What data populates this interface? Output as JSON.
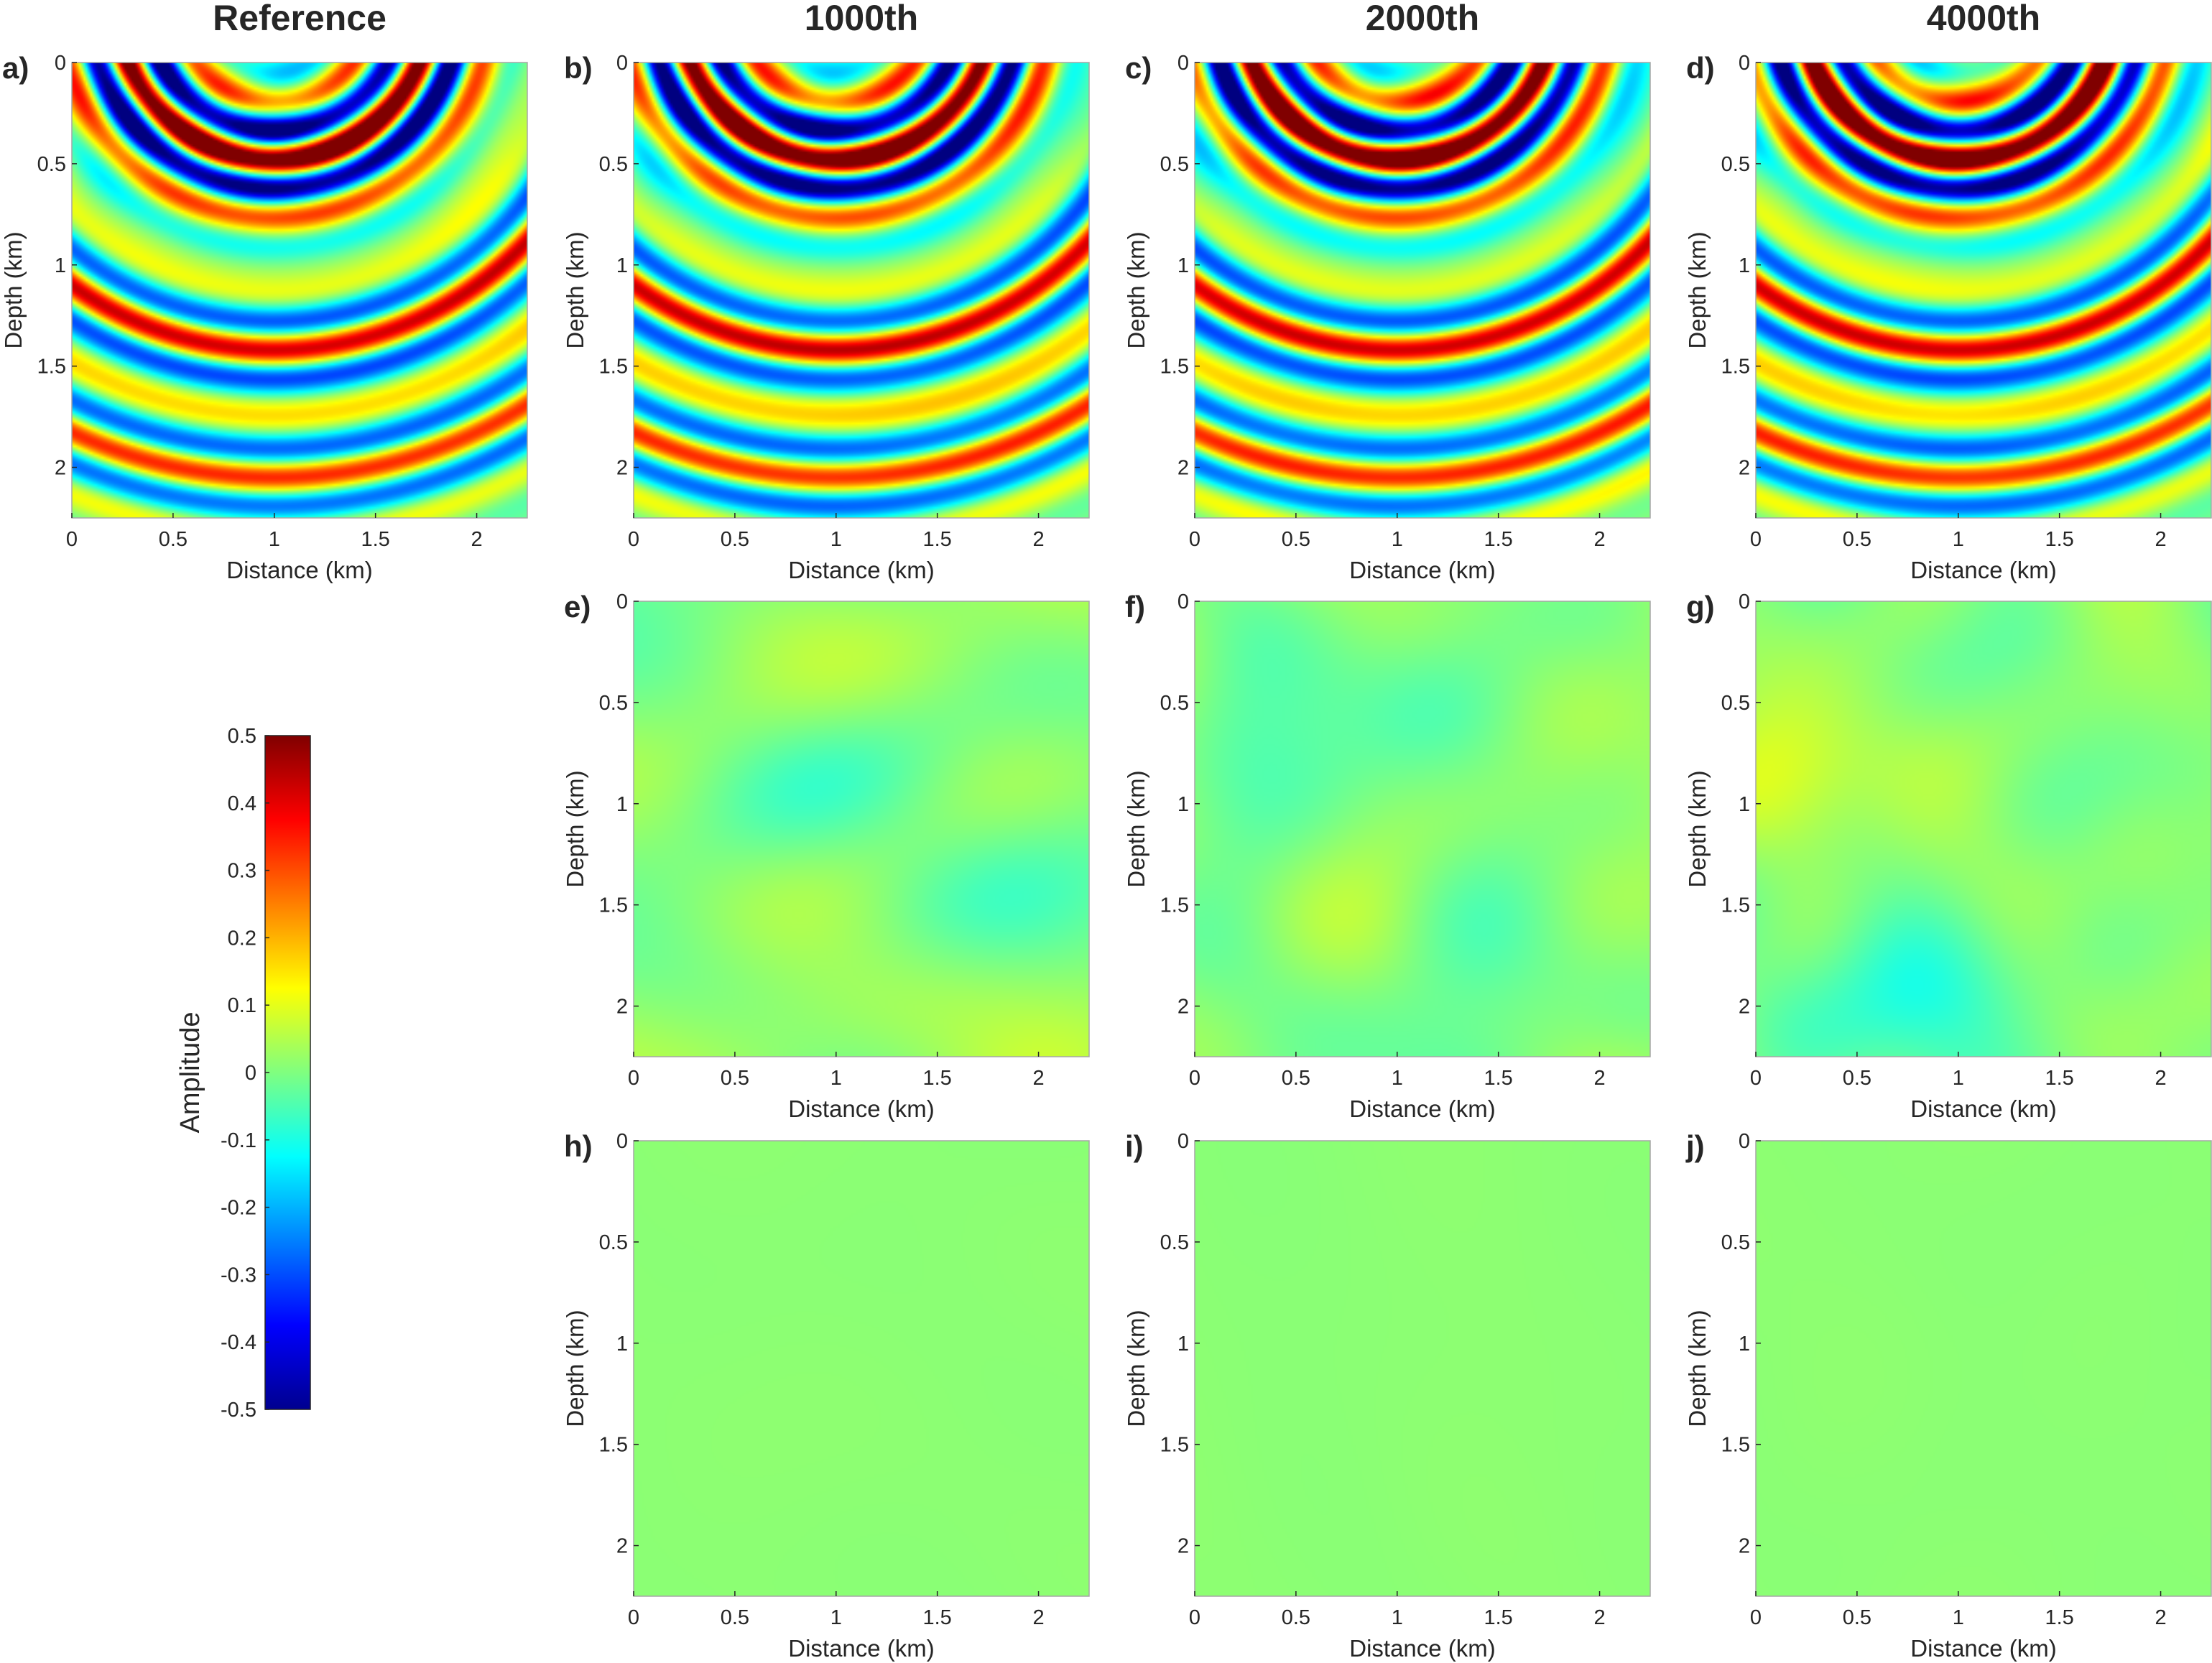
{
  "chart_data": {
    "type": "heatmap",
    "colormap": "jet",
    "columns": [
      "Reference",
      "1000th",
      "2000th",
      "4000th"
    ],
    "panels": [
      {
        "letter": "a)",
        "column": "Reference",
        "row": 1,
        "x": [
          0,
          2.25
        ],
        "y": [
          0,
          2.25
        ],
        "content": "wavefield",
        "amplitude_range": [
          -0.5,
          0.5
        ]
      },
      {
        "letter": "b)",
        "column": "1000th",
        "row": 1,
        "x": [
          0,
          2.25
        ],
        "y": [
          0,
          2.25
        ],
        "content": "wavefield",
        "amplitude_range": [
          -0.5,
          0.5
        ]
      },
      {
        "letter": "c)",
        "column": "2000th",
        "row": 1,
        "x": [
          0,
          2.25
        ],
        "y": [
          0,
          2.25
        ],
        "content": "wavefield",
        "amplitude_range": [
          -0.5,
          0.5
        ]
      },
      {
        "letter": "d)",
        "column": "4000th",
        "row": 1,
        "x": [
          0,
          2.25
        ],
        "y": [
          0,
          2.25
        ],
        "content": "wavefield",
        "amplitude_range": [
          -0.5,
          0.5
        ]
      },
      {
        "letter": "e)",
        "column": "1000th",
        "row": 2,
        "x": [
          0,
          2.25
        ],
        "y": [
          0,
          2.25
        ],
        "content": "residual",
        "amplitude_range": [
          -0.1,
          0.1
        ]
      },
      {
        "letter": "f)",
        "column": "2000th",
        "row": 2,
        "x": [
          0,
          2.25
        ],
        "y": [
          0,
          2.25
        ],
        "content": "residual",
        "amplitude_range": [
          -0.1,
          0.1
        ]
      },
      {
        "letter": "g)",
        "column": "4000th",
        "row": 2,
        "x": [
          0,
          2.25
        ],
        "y": [
          0,
          2.25
        ],
        "content": "residual",
        "amplitude_range": [
          -0.1,
          0.1
        ]
      },
      {
        "letter": "h)",
        "column": "1000th",
        "row": 3,
        "x": [
          0,
          2.25
        ],
        "y": [
          0,
          2.25
        ],
        "content": "near-zero",
        "amplitude_range": [
          -0.01,
          0.01
        ]
      },
      {
        "letter": "i)",
        "column": "2000th",
        "row": 3,
        "x": [
          0,
          2.25
        ],
        "y": [
          0,
          2.25
        ],
        "content": "near-zero",
        "amplitude_range": [
          -0.01,
          0.01
        ]
      },
      {
        "letter": "j)",
        "column": "4000th",
        "row": 3,
        "x": [
          0,
          2.25
        ],
        "y": [
          0,
          2.25
        ],
        "content": "near-zero",
        "amplitude_range": [
          -0.01,
          0.01
        ]
      }
    ],
    "xlabel": "Distance (km)",
    "ylabel": "Depth (km)",
    "xlim": [
      0,
      2.25
    ],
    "ylim": [
      0,
      2.25
    ],
    "y_reversed": true,
    "xticks": [
      0,
      0.5,
      1,
      1.5,
      2
    ],
    "xtick_labels": [
      "0",
      "0.5",
      "1",
      "1.5",
      "2"
    ],
    "yticks": [
      0,
      0.5,
      1,
      1.5,
      2
    ],
    "ytick_labels": [
      "0",
      "0.5",
      "1",
      "1.5",
      "2"
    ],
    "colorbar": {
      "label": "Amplitude",
      "range": [
        -0.5,
        0.5
      ],
      "ticks": [
        0.5,
        0.4,
        0.3,
        0.2,
        0.1,
        0,
        -0.1,
        -0.2,
        -0.3,
        -0.4,
        -0.5
      ],
      "tick_labels": [
        "0.5",
        "0.4",
        "0.3",
        "0.2",
        "0.1",
        "0",
        "-0.1",
        "-0.2",
        "-0.3",
        "-0.4",
        "-0.5"
      ]
    },
    "grid": false,
    "colors": {
      "frame": "#a6a6a6",
      "text": "#262626",
      "background": "#ffffff"
    }
  }
}
